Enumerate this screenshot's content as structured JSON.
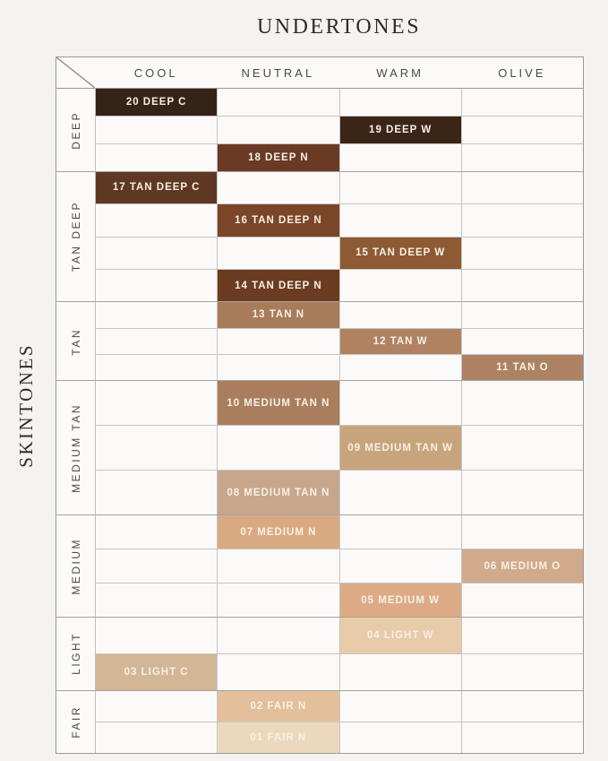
{
  "palette": {
    "cell_text": "#f7f0e6",
    "page_background": "#f4f3f1",
    "grid_background": "#fbfaf8",
    "border_outer": "#9b9995",
    "border_inner": "#c7c5c1"
  },
  "chart_data": {
    "type": "table",
    "title": "UNDERTONES",
    "row_axis_label": "SKINTONES",
    "columns": [
      "COOL",
      "NEUTRAL",
      "WARM",
      "OLIVE"
    ],
    "groups": [
      {
        "label": "DEEP",
        "shades": [
          {
            "name": "20 DEEP C",
            "column": "cool",
            "color": "#362318"
          },
          {
            "name": "19 DEEP W",
            "column": "warm",
            "color": "#3a2517"
          },
          {
            "name": "18 DEEP N",
            "column": "neutral",
            "color": "#6a3a24"
          }
        ]
      },
      {
        "label": "TAN DEEP",
        "shades": [
          {
            "name": "17 TAN DEEP C",
            "column": "cool",
            "color": "#5f3823"
          },
          {
            "name": "16 TAN DEEP N",
            "column": "neutral",
            "color": "#7b4628"
          },
          {
            "name": "15 TAN DEEP W",
            "column": "warm",
            "color": "#8d5a33"
          },
          {
            "name": "14 TAN DEEP N",
            "column": "neutral",
            "color": "#6b3c22"
          }
        ]
      },
      {
        "label": "TAN",
        "shades": [
          {
            "name": "13 TAN N",
            "column": "neutral",
            "color": "#a87c5b"
          },
          {
            "name": "12 TAN W",
            "column": "warm",
            "color": "#b08262"
          },
          {
            "name": "11 TAN O",
            "column": "olive",
            "color": "#ad8262"
          }
        ]
      },
      {
        "label": "MEDIUM TAN",
        "shades": [
          {
            "name": "10 MEDIUM TAN N",
            "column": "neutral",
            "color": "#aa7e5d"
          },
          {
            "name": "09 MEDIUM TAN W",
            "column": "warm",
            "color": "#c8a47d"
          },
          {
            "name": "08 MEDIUM TAN N",
            "column": "neutral",
            "color": "#c7a68c"
          }
        ]
      },
      {
        "label": "MEDIUM",
        "shades": [
          {
            "name": "07 MEDIUM N",
            "column": "neutral",
            "color": "#d9a982"
          },
          {
            "name": "06 MEDIUM O",
            "column": "olive",
            "color": "#d0aa8b"
          },
          {
            "name": "05 MEDIUM W",
            "column": "warm",
            "color": "#dcab85"
          }
        ]
      },
      {
        "label": "LIGHT",
        "shades": [
          {
            "name": "04 LIGHT W",
            "column": "warm",
            "color": "#e8cba8"
          },
          {
            "name": "03 LIGHT C",
            "column": "cool",
            "color": "#d3b696"
          }
        ]
      },
      {
        "label": "FAIR",
        "shades": [
          {
            "name": "02 FAIR N",
            "column": "neutral",
            "color": "#e3c09b"
          },
          {
            "name": "01 FAIR N",
            "column": "neutral",
            "color": "#ecd9bd"
          }
        ]
      }
    ]
  }
}
